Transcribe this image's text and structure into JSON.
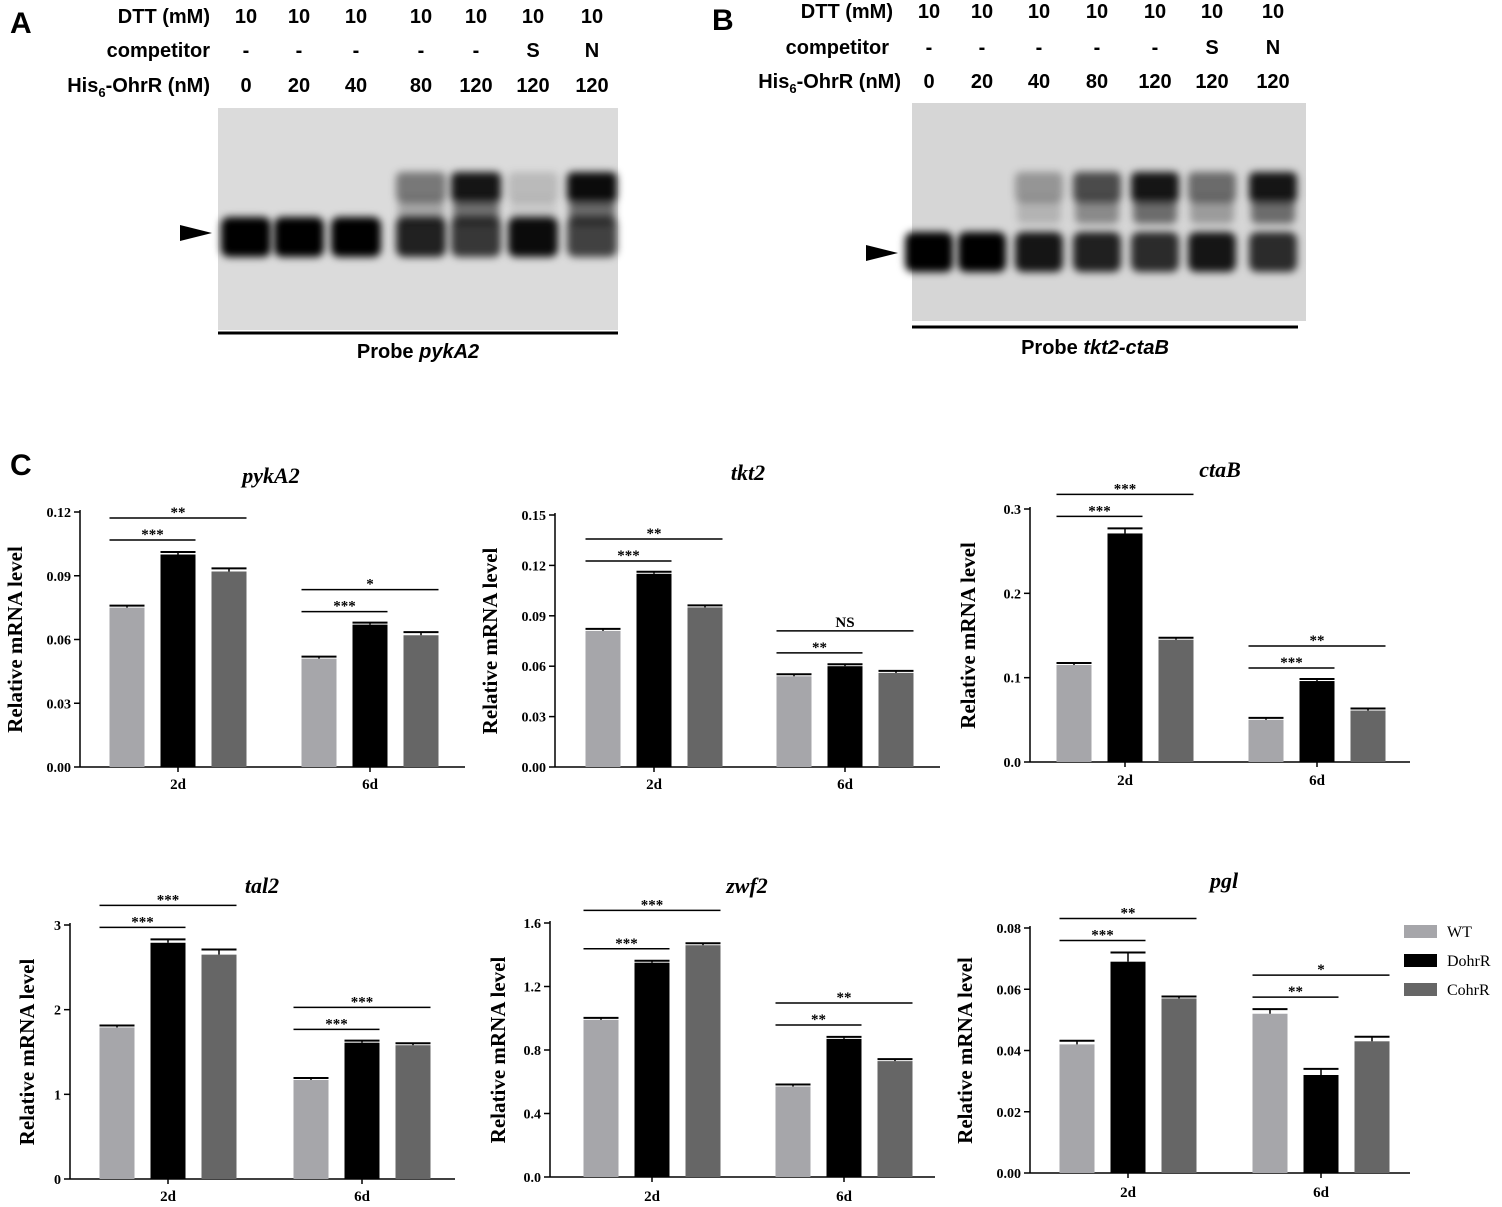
{
  "panel_labels": [
    "A",
    "B",
    "C"
  ],
  "gels": [
    {
      "label": "A",
      "rows": [
        {
          "label": "DTT (mM)",
          "values": [
            "10",
            "10",
            "10",
            "10",
            "10",
            "10",
            "10"
          ]
        },
        {
          "label": "competitor",
          "values": [
            "-",
            "-",
            "-",
            "-",
            "-",
            "S",
            "N"
          ]
        },
        {
          "label_base": "His",
          "label_sub": "6",
          "label_rest": "-OhrR (nM)",
          "values": [
            "0",
            "20",
            "40",
            "80",
            "120",
            "120",
            "120"
          ]
        }
      ],
      "probe_prefix": "Probe ",
      "probe_name": "pykA2",
      "shift_intensity": [
        0,
        0,
        0,
        0.45,
        0.9,
        0.15,
        0.95
      ],
      "free_intensity": [
        1,
        1,
        1,
        0.85,
        0.75,
        0.95,
        0.7
      ]
    },
    {
      "label": "B",
      "rows": [
        {
          "label": "DTT (mM)",
          "values": [
            "10",
            "10",
            "10",
            "10",
            "10",
            "10",
            "10"
          ]
        },
        {
          "label": "competitor",
          "values": [
            "-",
            "-",
            "-",
            "-",
            "-",
            "S",
            "N"
          ]
        },
        {
          "label_base": "His",
          "label_sub": "6",
          "label_rest": "-OhrR (nM)",
          "values": [
            "0",
            "20",
            "40",
            "80",
            "120",
            "120",
            "120"
          ]
        }
      ],
      "probe_prefix": "Probe ",
      "probe_name": "tkt2-ctaB",
      "shift_intensity": [
        0,
        0,
        0.3,
        0.65,
        0.9,
        0.5,
        0.9
      ],
      "free_intensity": [
        1,
        1,
        0.9,
        0.85,
        0.8,
        0.9,
        0.8
      ]
    }
  ],
  "colors": {
    "WT": "#a6a6aa",
    "DohrR": "#000000",
    "CohrR": "#666666"
  },
  "chart_data": [
    {
      "type": "bar",
      "title": "pykA2",
      "ylabel": "Relative mRNA level",
      "categories": [
        "2d",
        "6d"
      ],
      "ylim": [
        0,
        0.12
      ],
      "yticks": [
        "0.00",
        "0.03",
        "0.06",
        "0.09",
        "0.12"
      ],
      "ytick_values": [
        0,
        0.03,
        0.06,
        0.09,
        0.12
      ],
      "series": [
        {
          "name": "WT",
          "values": [
            0.075,
            0.051
          ],
          "errors": [
            0.0005,
            0.0004
          ]
        },
        {
          "name": "DohrR",
          "values": [
            0.1,
            0.067
          ],
          "errors": [
            0.0012,
            0.0005
          ]
        },
        {
          "name": "CohrR",
          "values": [
            0.092,
            0.062
          ],
          "errors": [
            0.0015,
            0.0015
          ]
        }
      ],
      "significance": [
        {
          "group": 0,
          "from": 0,
          "to": 1,
          "label": "***",
          "level": 0
        },
        {
          "group": 0,
          "from": 0,
          "to": 2,
          "label": "**",
          "level": 1
        },
        {
          "group": 1,
          "from": 0,
          "to": 1,
          "label": "***",
          "level": 0
        },
        {
          "group": 1,
          "from": 0,
          "to": 2,
          "label": "*",
          "level": 1
        }
      ]
    },
    {
      "type": "bar",
      "title": "tkt2",
      "ylabel": "Relative mRNA level",
      "categories": [
        "2d",
        "6d"
      ],
      "ylim": [
        0,
        0.15
      ],
      "yticks": [
        "0.00",
        "0.03",
        "0.06",
        "0.09",
        "0.12",
        "0.15"
      ],
      "ytick_values": [
        0,
        0.03,
        0.06,
        0.09,
        0.12,
        0.15
      ],
      "series": [
        {
          "name": "WT",
          "values": [
            0.081,
            0.054
          ],
          "errors": [
            0.0006,
            0.0004
          ]
        },
        {
          "name": "DohrR",
          "values": [
            0.115,
            0.06
          ],
          "errors": [
            0.0005,
            0.0008
          ]
        },
        {
          "name": "CohrR",
          "values": [
            0.095,
            0.056
          ],
          "errors": [
            0.0005,
            0.0006
          ]
        }
      ],
      "significance": [
        {
          "group": 0,
          "from": 0,
          "to": 1,
          "label": "***",
          "level": 0
        },
        {
          "group": 0,
          "from": 0,
          "to": 2,
          "label": "**",
          "level": 1
        },
        {
          "group": 1,
          "from": 0,
          "to": 1,
          "label": "**",
          "level": 0
        },
        {
          "group": 1,
          "from": 0,
          "to": 2,
          "label": "NS",
          "level": 1
        }
      ]
    },
    {
      "type": "bar",
      "title": "ctaB",
      "ylabel": "Relative mRNA level",
      "categories": [
        "2d",
        "6d"
      ],
      "ylim": [
        0,
        0.3
      ],
      "yticks": [
        "0.0",
        "0.1",
        "0.2",
        "0.3"
      ],
      "ytick_values": [
        0,
        0.1,
        0.2,
        0.3
      ],
      "series": [
        {
          "name": "WT",
          "values": [
            0.115,
            0.05
          ],
          "errors": [
            0.0008,
            0.0006
          ]
        },
        {
          "name": "DohrR",
          "values": [
            0.271,
            0.096
          ],
          "errors": [
            0.006,
            0.0012
          ]
        },
        {
          "name": "CohrR",
          "values": [
            0.145,
            0.061
          ],
          "errors": [
            0.001,
            0.0008
          ]
        }
      ],
      "significance": [
        {
          "group": 0,
          "from": 0,
          "to": 1,
          "label": "***",
          "level": 0
        },
        {
          "group": 0,
          "from": 0,
          "to": 2,
          "label": "***",
          "level": 1
        },
        {
          "group": 1,
          "from": 0,
          "to": 1,
          "label": "***",
          "level": 0
        },
        {
          "group": 1,
          "from": 0,
          "to": 2,
          "label": "**",
          "level": 1
        }
      ]
    },
    {
      "type": "bar",
      "title": "tal2",
      "ylabel": "Relative mRNA level",
      "categories": [
        "2d",
        "6d"
      ],
      "ylim": [
        0,
        3
      ],
      "yticks": [
        "0",
        "1",
        "2",
        "3"
      ],
      "ytick_values": [
        0,
        1,
        2,
        3
      ],
      "series": [
        {
          "name": "WT",
          "values": [
            1.79,
            1.17
          ],
          "errors": [
            0.004,
            0.01
          ]
        },
        {
          "name": "DohrR",
          "values": [
            2.79,
            1.61
          ],
          "errors": [
            0.04,
            0.015
          ]
        },
        {
          "name": "CohrR",
          "values": [
            2.65,
            1.58
          ],
          "errors": [
            0.06,
            0.01
          ]
        }
      ],
      "significance": [
        {
          "group": 0,
          "from": 0,
          "to": 1,
          "label": "***",
          "level": 0
        },
        {
          "group": 0,
          "from": 0,
          "to": 2,
          "label": "***",
          "level": 1
        },
        {
          "group": 1,
          "from": 0,
          "to": 1,
          "label": "***",
          "level": 0
        },
        {
          "group": 1,
          "from": 0,
          "to": 2,
          "label": "***",
          "level": 1
        }
      ]
    },
    {
      "type": "bar",
      "title": "zwf2",
      "ylabel": "Relative mRNA level",
      "categories": [
        "2d",
        "6d"
      ],
      "ylim": [
        0,
        1.6
      ],
      "yticks": [
        "0.0",
        "0.4",
        "0.8",
        "1.2",
        "1.6"
      ],
      "ytick_values": [
        0,
        0.4,
        0.8,
        1.2,
        1.6
      ],
      "series": [
        {
          "name": "WT",
          "values": [
            0.99,
            0.57
          ],
          "errors": [
            0.012,
            0.006
          ]
        },
        {
          "name": "DohrR",
          "values": [
            1.35,
            0.87
          ],
          "errors": [
            0.012,
            0.012
          ]
        },
        {
          "name": "CohrR",
          "values": [
            1.46,
            0.73
          ],
          "errors": [
            0.005,
            0.008
          ]
        }
      ],
      "significance": [
        {
          "group": 0,
          "from": 0,
          "to": 1,
          "label": "***",
          "level": 0
        },
        {
          "group": 0,
          "from": 0,
          "to": 2,
          "label": "***",
          "level": 1
        },
        {
          "group": 1,
          "from": 0,
          "to": 1,
          "label": "**",
          "level": 0
        },
        {
          "group": 1,
          "from": 0,
          "to": 2,
          "label": "**",
          "level": 1
        }
      ]
    },
    {
      "type": "bar",
      "title": "pgl",
      "ylabel": "Relative mRNA level",
      "categories": [
        "2d",
        "6d"
      ],
      "ylim": [
        0,
        0.08
      ],
      "yticks": [
        "0.00",
        "0.02",
        "0.04",
        "0.06",
        "0.08"
      ],
      "ytick_values": [
        0,
        0.02,
        0.04,
        0.06,
        0.08
      ],
      "series": [
        {
          "name": "WT",
          "values": [
            0.042,
            0.052
          ],
          "errors": [
            0.0012,
            0.0015
          ]
        },
        {
          "name": "DohrR",
          "values": [
            0.069,
            0.032
          ],
          "errors": [
            0.003,
            0.002
          ]
        },
        {
          "name": "CohrR",
          "values": [
            0.057,
            0.043
          ],
          "errors": [
            0.0002,
            0.0015
          ]
        }
      ],
      "significance": [
        {
          "group": 0,
          "from": 0,
          "to": 1,
          "label": "***",
          "level": 0
        },
        {
          "group": 0,
          "from": 0,
          "to": 2,
          "label": "**",
          "level": 1
        },
        {
          "group": 1,
          "from": 0,
          "to": 1,
          "label": "**",
          "level": 0
        },
        {
          "group": 1,
          "from": 0,
          "to": 2,
          "label": "*",
          "level": 1
        }
      ]
    }
  ],
  "legend": {
    "placement": "right of pgl chart",
    "items": [
      {
        "name": "WT",
        "color": "#a6a6aa"
      },
      {
        "name": "DohrR",
        "color": "#000000"
      },
      {
        "name": "CohrR",
        "color": "#666666"
      }
    ]
  }
}
